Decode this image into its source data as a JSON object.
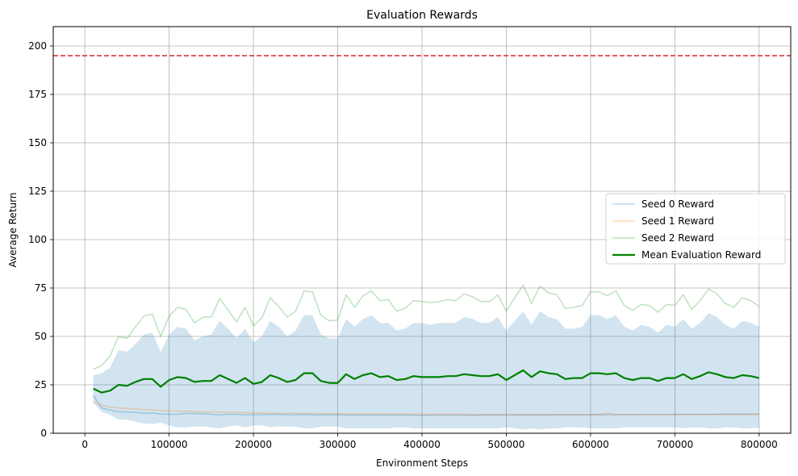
{
  "chart_data": {
    "type": "line",
    "title": "Evaluation Rewards",
    "xlabel": "Environment Steps",
    "ylabel": "Average Return",
    "xlim": [
      -37500,
      837500
    ],
    "ylim": [
      0,
      210
    ],
    "xticks": [
      0,
      100000,
      200000,
      300000,
      400000,
      500000,
      600000,
      700000,
      800000
    ],
    "yticks": [
      0,
      25,
      50,
      75,
      100,
      125,
      150,
      175,
      200
    ],
    "grid": true,
    "legend_position": "center-right",
    "reference_line": {
      "y": 195,
      "style": "dashed",
      "color": "#d62728"
    },
    "colors": {
      "seed0": "#1f77b4",
      "seed1": "#ff7f0e",
      "seed2": "#2ca02c",
      "mean": "#008000",
      "band": "#1f77b4",
      "grid": "#b0b0b0"
    },
    "x": [
      10000,
      20000,
      30000,
      40000,
      50000,
      60000,
      70000,
      80000,
      90000,
      100000,
      110000,
      120000,
      130000,
      140000,
      150000,
      160000,
      170000,
      180000,
      190000,
      200000,
      210000,
      220000,
      230000,
      240000,
      250000,
      260000,
      270000,
      280000,
      290000,
      300000,
      310000,
      320000,
      330000,
      340000,
      350000,
      360000,
      370000,
      380000,
      390000,
      400000,
      410000,
      420000,
      430000,
      440000,
      450000,
      460000,
      470000,
      480000,
      490000,
      500000,
      510000,
      520000,
      530000,
      540000,
      550000,
      560000,
      570000,
      580000,
      590000,
      600000,
      610000,
      620000,
      630000,
      640000,
      650000,
      660000,
      670000,
      680000,
      690000,
      700000,
      710000,
      720000,
      730000,
      740000,
      750000,
      760000,
      770000,
      780000,
      790000,
      800000
    ],
    "series": [
      {
        "name": "Seed 0 Reward",
        "values": [
          19.5,
          13.0,
          12.0,
          11.0,
          11.0,
          10.8,
          10.3,
          10.5,
          10.0,
          9.8,
          9.8,
          10.2,
          10.2,
          10.0,
          9.8,
          9.5,
          9.8,
          9.8,
          9.5,
          9.6,
          9.6,
          9.7,
          9.7,
          9.6,
          9.5,
          9.6,
          9.5,
          9.5,
          9.5,
          9.5,
          9.4,
          9.4,
          9.4,
          9.4,
          9.3,
          9.3,
          9.4,
          9.3,
          9.3,
          9.2,
          9.3,
          9.3,
          9.3,
          9.3,
          9.3,
          9.3,
          9.4,
          9.4,
          9.4,
          9.4,
          9.4,
          9.4,
          9.4,
          9.4,
          9.4,
          9.5,
          9.5,
          9.5,
          9.5,
          9.5,
          9.6,
          9.6,
          9.6,
          9.6,
          9.6,
          9.7,
          9.7,
          9.7,
          9.7,
          9.7,
          9.8,
          9.8,
          9.8,
          9.8,
          9.8,
          9.9,
          9.9,
          9.9,
          9.9,
          10.0
        ]
      },
      {
        "name": "Seed 1 Reward",
        "values": [
          16.0,
          14.5,
          13.5,
          13.0,
          12.8,
          12.5,
          12.3,
          12.0,
          11.8,
          11.5,
          11.5,
          11.3,
          11.2,
          11.0,
          11.0,
          10.9,
          10.8,
          10.7,
          10.6,
          10.5,
          10.5,
          10.4,
          10.4,
          10.3,
          10.3,
          10.2,
          10.2,
          10.2,
          10.1,
          10.1,
          10.0,
          10.0,
          10.0,
          10.0,
          9.9,
          9.9,
          9.9,
          9.9,
          9.9,
          9.8,
          9.8,
          9.8,
          9.8,
          9.8,
          9.8,
          9.7,
          9.7,
          9.7,
          9.7,
          9.7,
          9.7,
          9.7,
          9.7,
          9.7,
          9.7,
          9.7,
          9.7,
          9.7,
          9.7,
          9.7,
          9.7,
          10.3,
          9.7,
          9.7,
          9.7,
          9.7,
          9.7,
          9.7,
          9.7,
          9.7,
          9.7,
          9.7,
          9.7,
          9.7,
          9.7,
          9.7,
          9.7,
          9.7,
          9.7,
          9.7
        ]
      },
      {
        "name": "Seed 2 Reward",
        "values": [
          33.0,
          35.0,
          40.0,
          50.0,
          49.0,
          55.0,
          60.5,
          61.5,
          50.0,
          60.5,
          65.0,
          64.0,
          57.0,
          60.0,
          60.0,
          69.5,
          63.5,
          57.5,
          65.0,
          55.5,
          59.5,
          70.0,
          65.5,
          60.0,
          63.0,
          73.5,
          73.0,
          61.0,
          58.0,
          58.5,
          71.5,
          65.0,
          71.0,
          73.5,
          68.5,
          69.0,
          63.0,
          64.5,
          68.5,
          68.0,
          67.5,
          68.0,
          69.0,
          68.5,
          72.0,
          70.5,
          68.0,
          68.0,
          71.5,
          63.0,
          70.0,
          76.5,
          67.0,
          76.0,
          72.5,
          71.5,
          64.5,
          65.0,
          66.0,
          73.0,
          73.0,
          71.0,
          73.5,
          66.0,
          63.5,
          66.5,
          66.0,
          62.5,
          66.5,
          66.0,
          71.5,
          64.0,
          68.5,
          74.5,
          72.0,
          67.0,
          65.0,
          70.0,
          68.5,
          65.5
        ]
      },
      {
        "name": "Mean Evaluation Reward",
        "values": [
          23.0,
          21.0,
          22.0,
          25.0,
          24.5,
          26.5,
          28.0,
          28.0,
          24.0,
          27.5,
          29.0,
          28.5,
          26.5,
          27.0,
          27.0,
          30.0,
          28.0,
          26.0,
          28.5,
          25.5,
          26.5,
          30.0,
          28.5,
          26.5,
          27.5,
          31.0,
          31.0,
          27.0,
          26.0,
          26.0,
          30.5,
          28.0,
          30.0,
          31.0,
          29.0,
          29.5,
          27.5,
          28.0,
          29.5,
          29.0,
          29.0,
          29.0,
          29.5,
          29.5,
          30.5,
          30.0,
          29.5,
          29.5,
          30.5,
          27.5,
          30.0,
          32.5,
          29.0,
          32.0,
          31.0,
          30.5,
          28.0,
          28.5,
          28.5,
          31.0,
          31.0,
          30.5,
          31.0,
          28.5,
          27.5,
          28.5,
          28.5,
          27.0,
          28.5,
          28.5,
          30.5,
          28.0,
          29.5,
          31.5,
          30.5,
          29.0,
          28.5,
          30.0,
          29.5,
          28.5
        ]
      }
    ],
    "band": {
      "upper": [
        30.0,
        31.0,
        34.0,
        43.0,
        42.0,
        46.0,
        51.0,
        52.0,
        42.0,
        51.0,
        55.0,
        54.0,
        48.0,
        50.0,
        51.0,
        58.0,
        54.0,
        49.0,
        54.0,
        47.0,
        50.0,
        58.0,
        55.0,
        50.0,
        53.0,
        61.0,
        61.0,
        51.0,
        49.0,
        49.0,
        59.0,
        55.0,
        59.0,
        61.0,
        57.0,
        57.0,
        53.0,
        54.0,
        57.0,
        57.0,
        56.0,
        57.0,
        57.0,
        57.0,
        60.0,
        59.0,
        57.0,
        57.0,
        60.0,
        53.0,
        58.0,
        63.0,
        56.0,
        63.0,
        60.0,
        59.0,
        54.0,
        54.0,
        55.0,
        61.0,
        61.0,
        59.0,
        61.0,
        55.0,
        53.0,
        56.0,
        55.0,
        52.0,
        56.0,
        55.0,
        59.0,
        54.0,
        57.0,
        62.0,
        60.0,
        56.0,
        54.0,
        58.0,
        57.0,
        55.0
      ],
      "lower": [
        16.0,
        11.0,
        9.5,
        7.0,
        7.0,
        6.0,
        5.0,
        4.8,
        5.5,
        4.0,
        3.0,
        3.0,
        3.5,
        3.5,
        3.0,
        2.5,
        3.5,
        4.0,
        3.0,
        4.0,
        4.0,
        3.0,
        3.5,
        3.5,
        3.5,
        2.5,
        2.5,
        3.5,
        3.5,
        3.5,
        2.5,
        2.5,
        2.5,
        2.5,
        2.5,
        2.5,
        3.0,
        3.0,
        2.5,
        2.5,
        2.5,
        2.5,
        2.5,
        2.5,
        2.5,
        2.5,
        2.5,
        2.5,
        2.5,
        3.0,
        2.5,
        2.0,
        2.5,
        2.0,
        2.5,
        2.5,
        3.0,
        3.0,
        3.0,
        2.5,
        2.5,
        2.5,
        2.5,
        3.0,
        3.0,
        3.0,
        3.0,
        3.0,
        3.0,
        3.0,
        2.5,
        3.0,
        3.0,
        2.5,
        2.5,
        3.0,
        3.0,
        2.5,
        2.5,
        3.0
      ]
    }
  }
}
